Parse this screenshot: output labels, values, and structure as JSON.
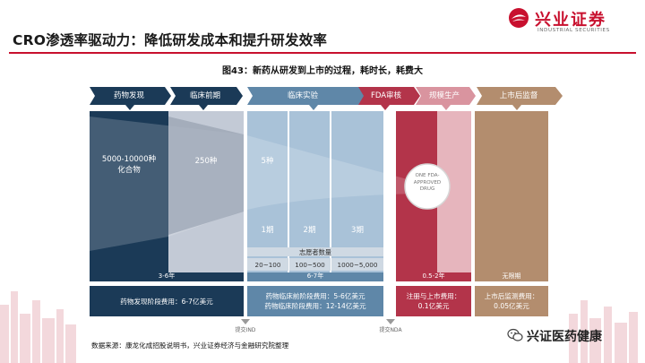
{
  "header": {
    "title": "CRO渗透率驱动力：降低研发成本和提升研发效率",
    "logo_cn": "兴业证券",
    "logo_en": "INDUSTRIAL SECURITIES"
  },
  "figure": {
    "title": "图43：新药从研发到上市的过程，耗时长，耗费大"
  },
  "stages": [
    {
      "label": "药物发现",
      "color": "#1b3a57"
    },
    {
      "label": "临床前期",
      "color": "#1b3a57"
    },
    {
      "label": "临床实验",
      "color": "#5f87a8"
    },
    {
      "label": "FDA审核",
      "color": "#b3344a"
    },
    {
      "label": "规模生产",
      "color": "#d9949f"
    },
    {
      "label": "上市后监督",
      "color": "#b38d6e"
    }
  ],
  "compounds": {
    "discovery": "5000-10000种\n化合物",
    "preclinical": "250种",
    "clinical": "5种"
  },
  "approved": "ONE FDA-\nAPPROVED\nDRUG",
  "phases": [
    "1期",
    "2期",
    "3期"
  ],
  "volunteers": {
    "label": "志愿者数量",
    "ranges": [
      "20~100",
      "100~500",
      "1000~5,000"
    ]
  },
  "durations": {
    "discovery": "3-6年",
    "clinical": "6-7年",
    "fda": "0.5-2年",
    "post": "无限期"
  },
  "costs": {
    "discovery": "药物发现阶段费用：6-7亿美元",
    "clinical_1": "药物临床前阶段费用：5-6亿美元",
    "clinical_2": "药物临床阶段费用：12-14亿美元",
    "fda_1": "注册与上市费用：",
    "fda_2": "0.1亿美元",
    "post_1": "上市后监测费用：",
    "post_2": "0.05亿美元"
  },
  "markers": {
    "ind": "提交IND",
    "nda": "提交NDA"
  },
  "source": "数据来源：康龙化成招股说明书，兴业证券经济与金融研究院整理",
  "wechat": "兴证医药健康"
}
